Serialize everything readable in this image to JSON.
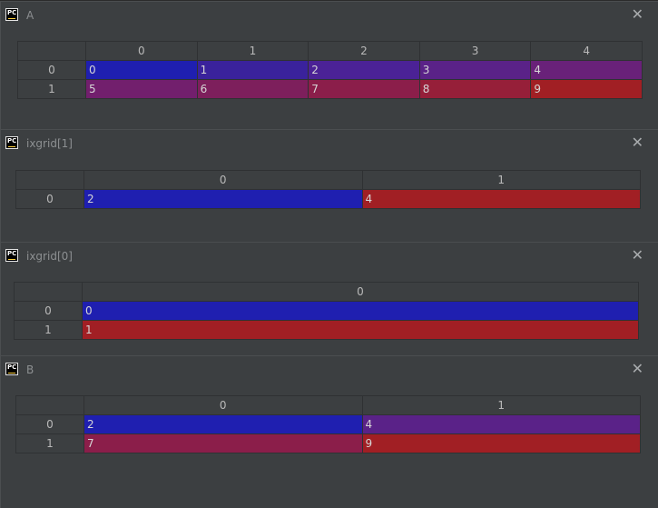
{
  "colors": {
    "c0": "#1f1fb0",
    "c1": "#3a229c",
    "c2": "#4b2296",
    "c3": "#5a2288",
    "c4": "#692179",
    "c5": "#721f6d",
    "c6": "#7d1f5c",
    "c7": "#8b1e4a",
    "c8": "#961f39",
    "c9": "#a11f24"
  },
  "icon": {
    "name": "pycharm-icon",
    "text": "PC"
  },
  "close_glyph": "✕",
  "windows": [
    {
      "title": "A",
      "cols": [
        "0",
        "1",
        "2",
        "3",
        "4"
      ],
      "rows": [
        {
          "label": "0",
          "cells": [
            "0",
            "1",
            "2",
            "3",
            "4"
          ],
          "colors": [
            "c0",
            "c1",
            "c2",
            "c3",
            "c4"
          ]
        },
        {
          "label": "1",
          "cells": [
            "5",
            "6",
            "7",
            "8",
            "9"
          ],
          "colors": [
            "c5",
            "c6",
            "c7",
            "c8",
            "c9"
          ]
        }
      ]
    },
    {
      "title": "ixgrid[1]",
      "cols": [
        "0",
        "1"
      ],
      "rows": [
        {
          "label": "0",
          "cells": [
            "2",
            "4"
          ],
          "colors": [
            "c0",
            "c9"
          ]
        }
      ]
    },
    {
      "title": "ixgrid[0]",
      "cols": [
        "0"
      ],
      "rows": [
        {
          "label": "0",
          "cells": [
            "0"
          ],
          "colors": [
            "c0"
          ]
        },
        {
          "label": "1",
          "cells": [
            "1"
          ],
          "colors": [
            "c9"
          ]
        }
      ]
    },
    {
      "title": "B",
      "cols": [
        "0",
        "1"
      ],
      "rows": [
        {
          "label": "0",
          "cells": [
            "2",
            "4"
          ],
          "colors": [
            "c0",
            "c3"
          ]
        },
        {
          "label": "1",
          "cells": [
            "7",
            "9"
          ],
          "colors": [
            "c7",
            "c9"
          ]
        }
      ]
    }
  ]
}
